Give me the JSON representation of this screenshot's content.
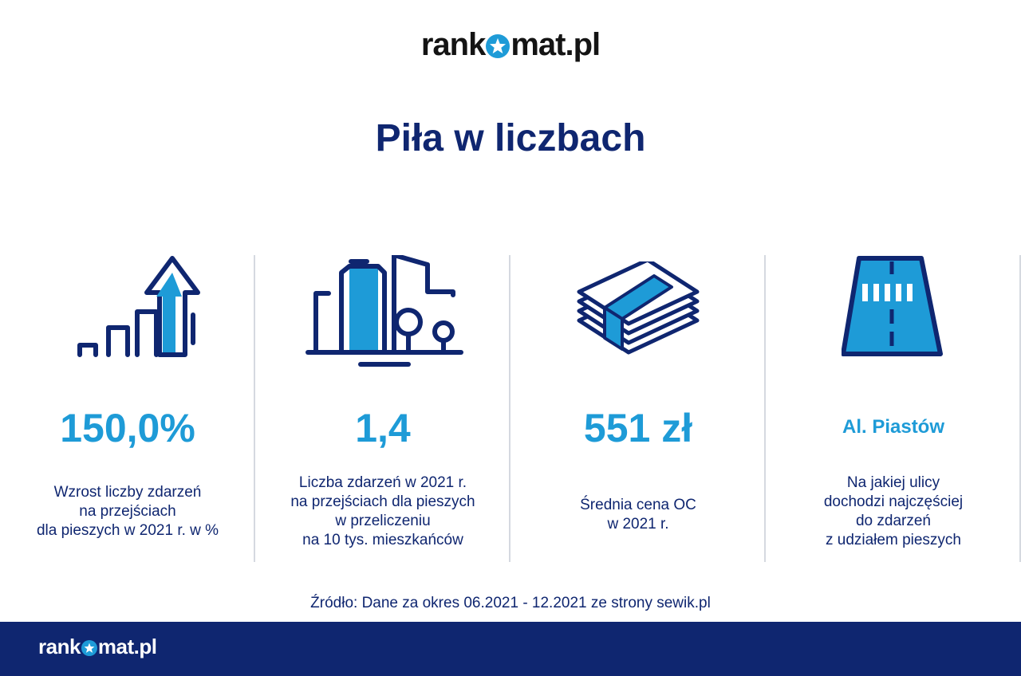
{
  "brand": {
    "logo_before": "rank",
    "logo_after": "mat.pl"
  },
  "title": "Piła w liczbach",
  "colors": {
    "navy": "#0f2670",
    "accent": "#1e9bd7",
    "divider": "#d5d9e0"
  },
  "stats": [
    {
      "icon": "growth-arrow-icon",
      "value": "150,0%",
      "desc": [
        "Wzrost liczby zdarzeń",
        "na przejściach",
        "dla pieszych w 2021 r. w %"
      ]
    },
    {
      "icon": "city-buildings-icon",
      "value": "1,4",
      "desc": [
        "Liczba zdarzeń w 2021 r.",
        "na przejściach dla pieszych",
        "w przeliczeniu",
        "na 10 tys. mieszkańców"
      ]
    },
    {
      "icon": "money-stack-icon",
      "value": "551 zł",
      "desc": [
        "Średnia cena OC",
        "w 2021 r."
      ]
    },
    {
      "icon": "road-crossing-icon",
      "value": "Al. Piastów",
      "desc": [
        "Na jakiej ulicy",
        "dochodzi najczęściej",
        "do zdarzeń",
        "z udziałem pieszych"
      ]
    }
  ],
  "source": "Źródło: Dane za okres 06.2021 - 12.2021 ze strony sewik.pl"
}
